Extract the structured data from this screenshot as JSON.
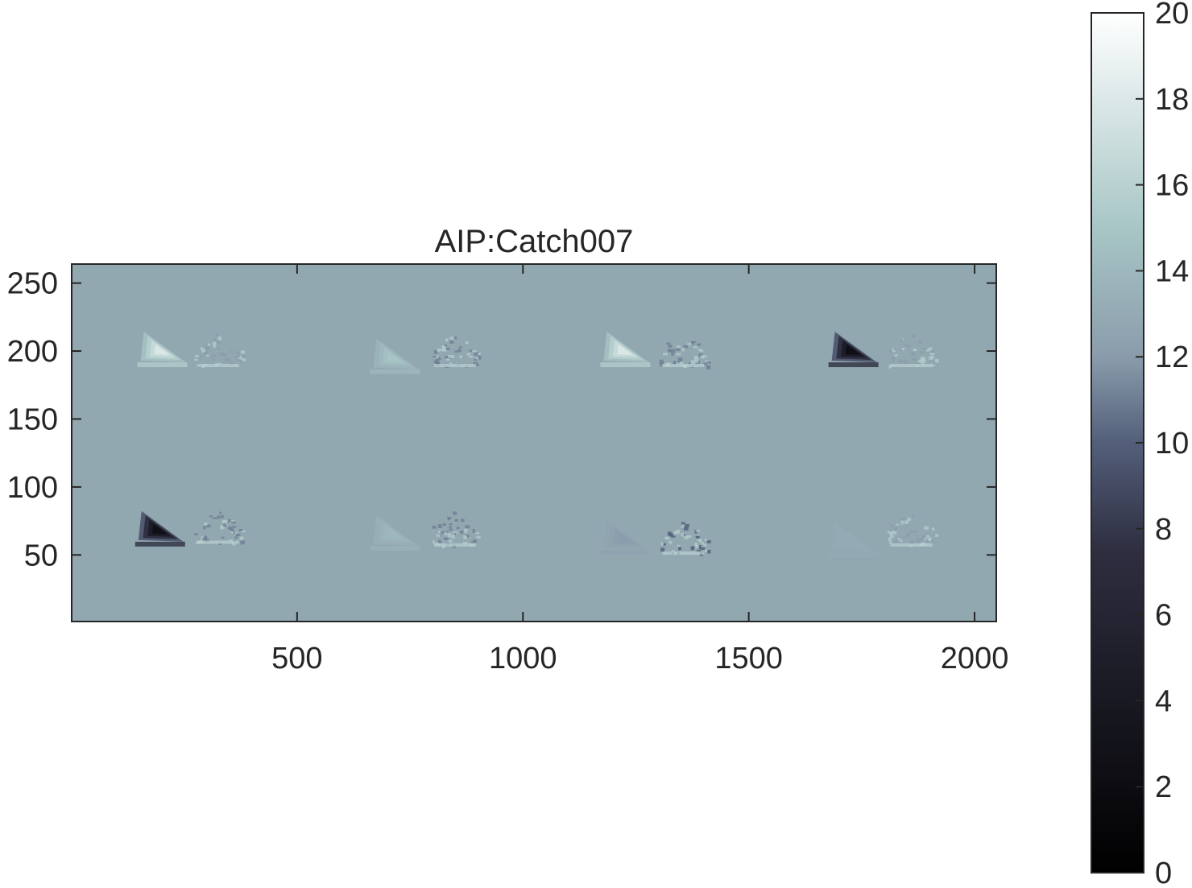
{
  "chart_data": {
    "type": "heatmap",
    "title": "AIP:Catch007",
    "xlabel": "",
    "ylabel": "",
    "xlim": [
      1,
      2048
    ],
    "ylim": [
      1,
      264
    ],
    "xticks": [
      500,
      1000,
      1500,
      2000
    ],
    "yticks": [
      50,
      100,
      150,
      200,
      250
    ],
    "background_value": 13,
    "colormap": "bone",
    "colorbar": {
      "position": "right",
      "clim": [
        0,
        20
      ],
      "ticks": [
        0,
        2,
        4,
        6,
        8,
        10,
        12,
        14,
        16,
        18,
        20
      ]
    },
    "blobs": [
      {
        "x": 200,
        "y": 200,
        "peak": 18,
        "kind": "triangle"
      },
      {
        "x": 325,
        "y": 200,
        "peak": 12,
        "kind": "speckle"
      },
      {
        "x": 715,
        "y": 195,
        "peak": 15,
        "kind": "triangle"
      },
      {
        "x": 850,
        "y": 200,
        "peak": 11,
        "kind": "speckle"
      },
      {
        "x": 1225,
        "y": 200,
        "peak": 18,
        "kind": "triangle"
      },
      {
        "x": 1355,
        "y": 200,
        "peak": 11,
        "kind": "speckle"
      },
      {
        "x": 1730,
        "y": 200,
        "peak": 2,
        "kind": "triangle"
      },
      {
        "x": 1860,
        "y": 200,
        "peak": 12,
        "kind": "speckle"
      },
      {
        "x": 195,
        "y": 68,
        "peak": 2,
        "kind": "triangle"
      },
      {
        "x": 325,
        "y": 70,
        "peak": 11,
        "kind": "speckle"
      },
      {
        "x": 715,
        "y": 65,
        "peak": 14,
        "kind": "triangle"
      },
      {
        "x": 850,
        "y": 68,
        "peak": 11,
        "kind": "speckle"
      },
      {
        "x": 1225,
        "y": 62,
        "peak": 12,
        "kind": "triangle"
      },
      {
        "x": 1355,
        "y": 62,
        "peak": 10,
        "kind": "speckle"
      },
      {
        "x": 1730,
        "y": 60,
        "peak": 13,
        "kind": "triangle"
      },
      {
        "x": 1860,
        "y": 68,
        "peak": 12,
        "kind": "speckle"
      }
    ]
  }
}
